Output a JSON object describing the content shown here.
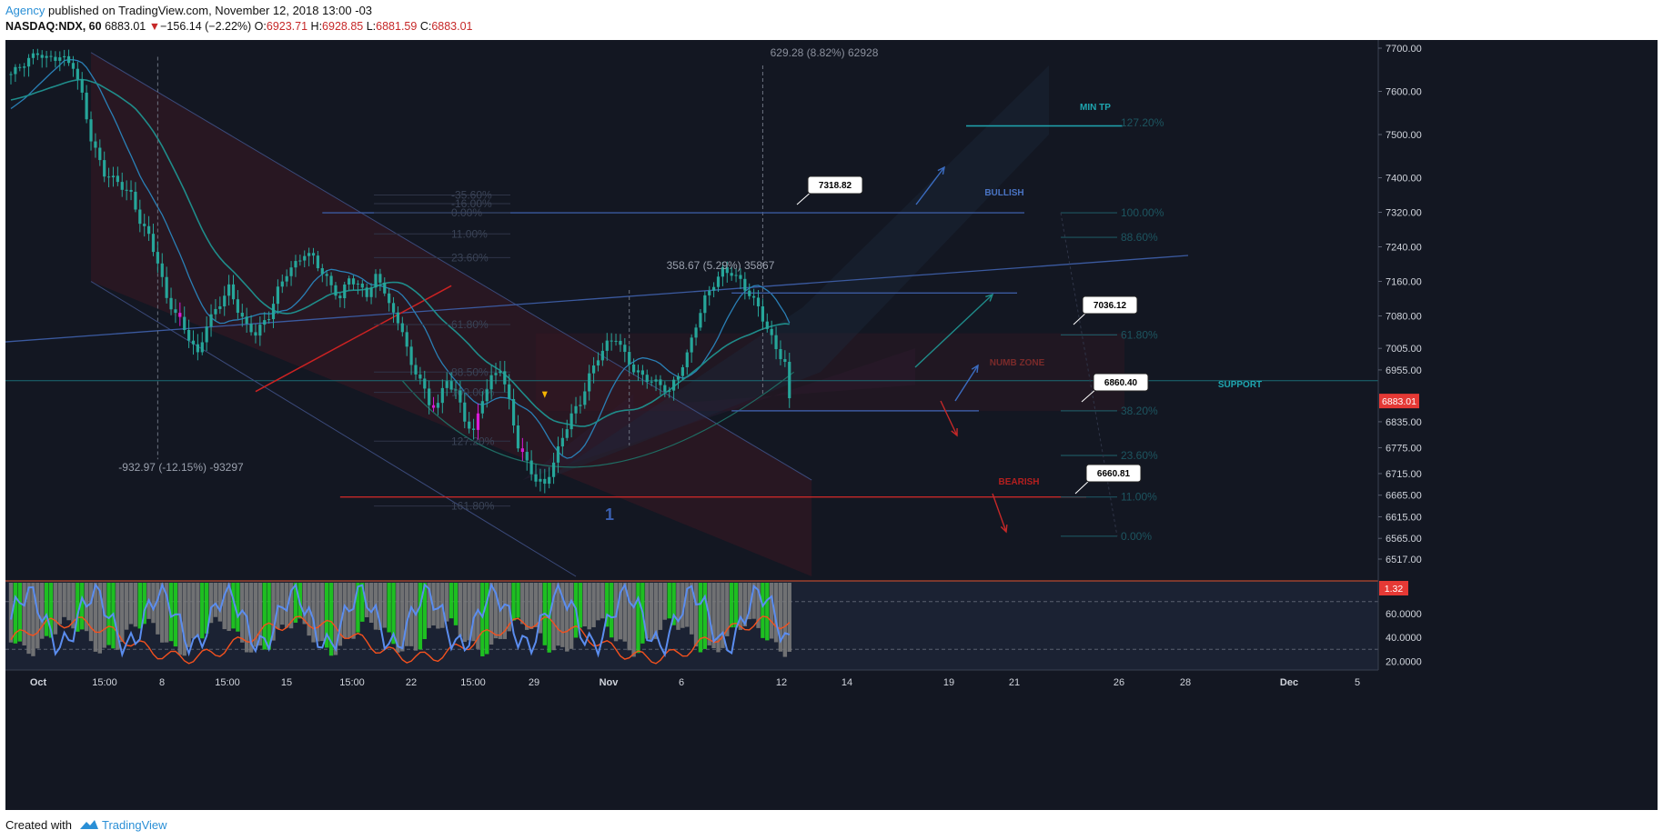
{
  "header": {
    "publisher": "Agency",
    "published_text": " published on TradingView.com, November 12, 2018 13:00 -03",
    "symbol": "NASDAQ:NDX, 60",
    "last": "6883.01",
    "arrow": "▼",
    "change": "−156.14 (−2.22%)",
    "o_label": "O:",
    "o": "6923.71",
    "h_label": "H:",
    "h": "6928.85",
    "l_label": "L:",
    "l": "6881.59",
    "c_label": "C:",
    "c": "6883.01"
  },
  "footer": {
    "created_with": "Created with",
    "brand": "TradingView"
  },
  "colors": {
    "background": "#131722",
    "candle": "#26a69a",
    "price_badge": "#e53935",
    "rsi_line": "#5b8def",
    "signal_line": "#f4511e",
    "hist_green": "#1fd01f",
    "hist_gray": "#7a7a7a"
  },
  "chart_data": {
    "type": "candlestick",
    "symbol": "NASDAQ:NDX",
    "interval": "60",
    "y_ticks": [
      "7700.00",
      "7600.00",
      "7500.00",
      "7400.00",
      "7320.00",
      "7240.00",
      "7160.00",
      "7080.00",
      "7005.00",
      "6955.00",
      "6835.00",
      "6775.00",
      "6715.00",
      "6665.00",
      "6615.00",
      "6565.00",
      "6517.00"
    ],
    "last_price_badge": "6883.01",
    "x_ticks": [
      {
        "label": "Oct",
        "bold": true
      },
      {
        "label": "15:00"
      },
      {
        "label": "8"
      },
      {
        "label": "15:00"
      },
      {
        "label": "15"
      },
      {
        "label": "15:00"
      },
      {
        "label": "22"
      },
      {
        "label": "15:00"
      },
      {
        "label": "29"
      },
      {
        "label": "Nov",
        "bold": true
      },
      {
        "label": "6"
      },
      {
        "label": "12"
      },
      {
        "label": "14"
      },
      {
        "label": "19"
      },
      {
        "label": "21"
      },
      {
        "label": "26"
      },
      {
        "label": "28"
      },
      {
        "label": "Dec",
        "bold": true
      },
      {
        "label": "5"
      }
    ],
    "close_path_anchors": [
      [
        0,
        7640
      ],
      [
        3,
        7665
      ],
      [
        6,
        7690
      ],
      [
        8,
        7675
      ],
      [
        11,
        7680
      ],
      [
        14,
        7660
      ],
      [
        16,
        7590
      ],
      [
        18,
        7490
      ],
      [
        21,
        7410
      ],
      [
        24,
        7390
      ],
      [
        27,
        7360
      ],
      [
        29,
        7300
      ],
      [
        31,
        7265
      ],
      [
        33,
        7205
      ],
      [
        35,
        7120
      ],
      [
        38,
        7070
      ],
      [
        40,
        7030
      ],
      [
        42,
        6990
      ],
      [
        44,
        7060
      ],
      [
        47,
        7110
      ],
      [
        49,
        7145
      ],
      [
        51,
        7095
      ],
      [
        53,
        7055
      ],
      [
        55,
        7040
      ],
      [
        58,
        7080
      ],
      [
        60,
        7140
      ],
      [
        62,
        7180
      ],
      [
        64,
        7200
      ],
      [
        66,
        7225
      ],
      [
        68,
        7215
      ],
      [
        70,
        7180
      ],
      [
        72,
        7150
      ],
      [
        74,
        7120
      ],
      [
        76,
        7170
      ],
      [
        78,
        7150
      ],
      [
        80,
        7130
      ],
      [
        82,
        7170
      ],
      [
        84,
        7140
      ],
      [
        86,
        7080
      ],
      [
        88,
        7050
      ],
      [
        90,
        6960
      ],
      [
        92,
        6940
      ],
      [
        94,
        6870
      ],
      [
        96,
        6880
      ],
      [
        98,
        6930
      ],
      [
        100,
        6905
      ],
      [
        102,
        6840
      ],
      [
        104,
        6810
      ],
      [
        106,
        6890
      ],
      [
        108,
        6935
      ],
      [
        110,
        6960
      ],
      [
        112,
        6880
      ],
      [
        114,
        6780
      ],
      [
        116,
        6740
      ],
      [
        118,
        6700
      ],
      [
        120,
        6690
      ],
      [
        122,
        6740
      ],
      [
        124,
        6800
      ],
      [
        126,
        6850
      ],
      [
        128,
        6880
      ],
      [
        130,
        6940
      ],
      [
        132,
        6985
      ],
      [
        134,
        7015
      ],
      [
        136,
        7030
      ],
      [
        138,
        6990
      ],
      [
        140,
        6955
      ],
      [
        142,
        6940
      ],
      [
        144,
        6930
      ],
      [
        146,
        6920
      ],
      [
        148,
        6905
      ],
      [
        150,
        6945
      ],
      [
        152,
        6990
      ],
      [
        154,
        7060
      ],
      [
        156,
        7120
      ],
      [
        158,
        7155
      ],
      [
        160,
        7185
      ],
      [
        162,
        7180
      ],
      [
        164,
        7160
      ],
      [
        166,
        7130
      ],
      [
        168,
        7100
      ],
      [
        170,
        7050
      ],
      [
        172,
        7005
      ],
      [
        174,
        6970
      ],
      [
        175,
        6883
      ]
    ],
    "texts": {
      "measure_top": "629.28 (8.82%) 62928",
      "measure_mid": "358.67 (5.29%) 35867",
      "measure_low": "-932.97 (-12.15%) -93297",
      "min_tp": "MIN TP",
      "bullish": "BULLISH",
      "bearish": "BEARISH",
      "support": "SUPPORT",
      "numb_zone": "NUMB ZONE",
      "wave_label": "1",
      "fib_right_1272": "127.20%",
      "callout_7318": "7318.82",
      "callout_7036": "7036.12",
      "callout_6860": "6860.40",
      "callout_6660": "6660.81"
    },
    "fib_left": [
      {
        "label": "-35.60%",
        "price": 7360
      },
      {
        "label": "-16.00%",
        "price": 7340
      },
      {
        "label": "0.00%",
        "price": 7318.82
      },
      {
        "label": "11.00%",
        "price": 7270
      },
      {
        "label": "23.60%",
        "price": 7215
      },
      {
        "label": "61.80%",
        "price": 7060
      },
      {
        "label": "88.50%",
        "price": 6950
      },
      {
        "label": "100.00%",
        "price": 6903
      },
      {
        "label": "127.20%",
        "price": 6790
      },
      {
        "label": "161.80%",
        "price": 6640
      }
    ],
    "fib_right": [
      {
        "label": "100.00%",
        "price": 7318.82
      },
      {
        "label": "88.60%",
        "price": 7262
      },
      {
        "label": "61.80%",
        "price": 7036.12
      },
      {
        "label": "38.20%",
        "price": 6860.4
      },
      {
        "label": "23.60%",
        "price": 6757
      },
      {
        "label": "11.00%",
        "price": 6660.81
      },
      {
        "label": "0.00%",
        "price": 6570
      }
    ],
    "rsi_panel": {
      "y_ticks": [
        "60.0000",
        "40.0000",
        "20.0000"
      ],
      "value_badge": "1.32"
    }
  }
}
